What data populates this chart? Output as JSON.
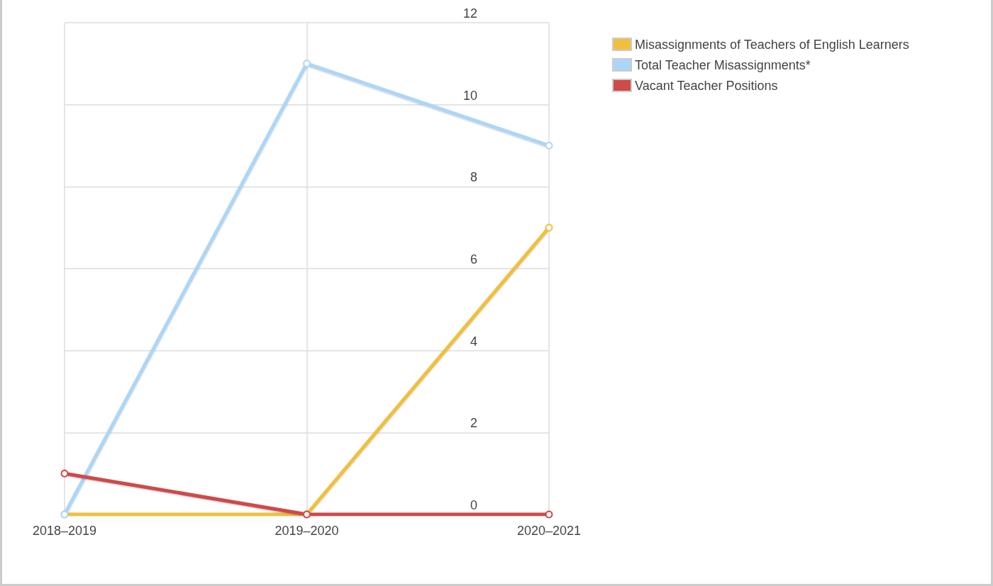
{
  "chart_data": {
    "type": "line",
    "categories": [
      "2018–2019",
      "2019–2020",
      "2020–2021"
    ],
    "series": [
      {
        "name": "Misassignments of Teachers of English Learners",
        "color": "#f0c03c",
        "values": [
          0,
          0,
          7
        ]
      },
      {
        "name": "Total Teacher Misassignments*",
        "color": "#acd6f8",
        "values": [
          0,
          11,
          9
        ]
      },
      {
        "name": "Vacant Teacher Positions",
        "color": "#d04a48",
        "values": [
          1,
          0,
          0
        ]
      }
    ],
    "ylim": [
      0,
      12
    ],
    "yticks": [
      0,
      2,
      4,
      6,
      8,
      10,
      12
    ],
    "grid": true,
    "legend": "top right",
    "marker": "circle",
    "line_style": "solid"
  }
}
